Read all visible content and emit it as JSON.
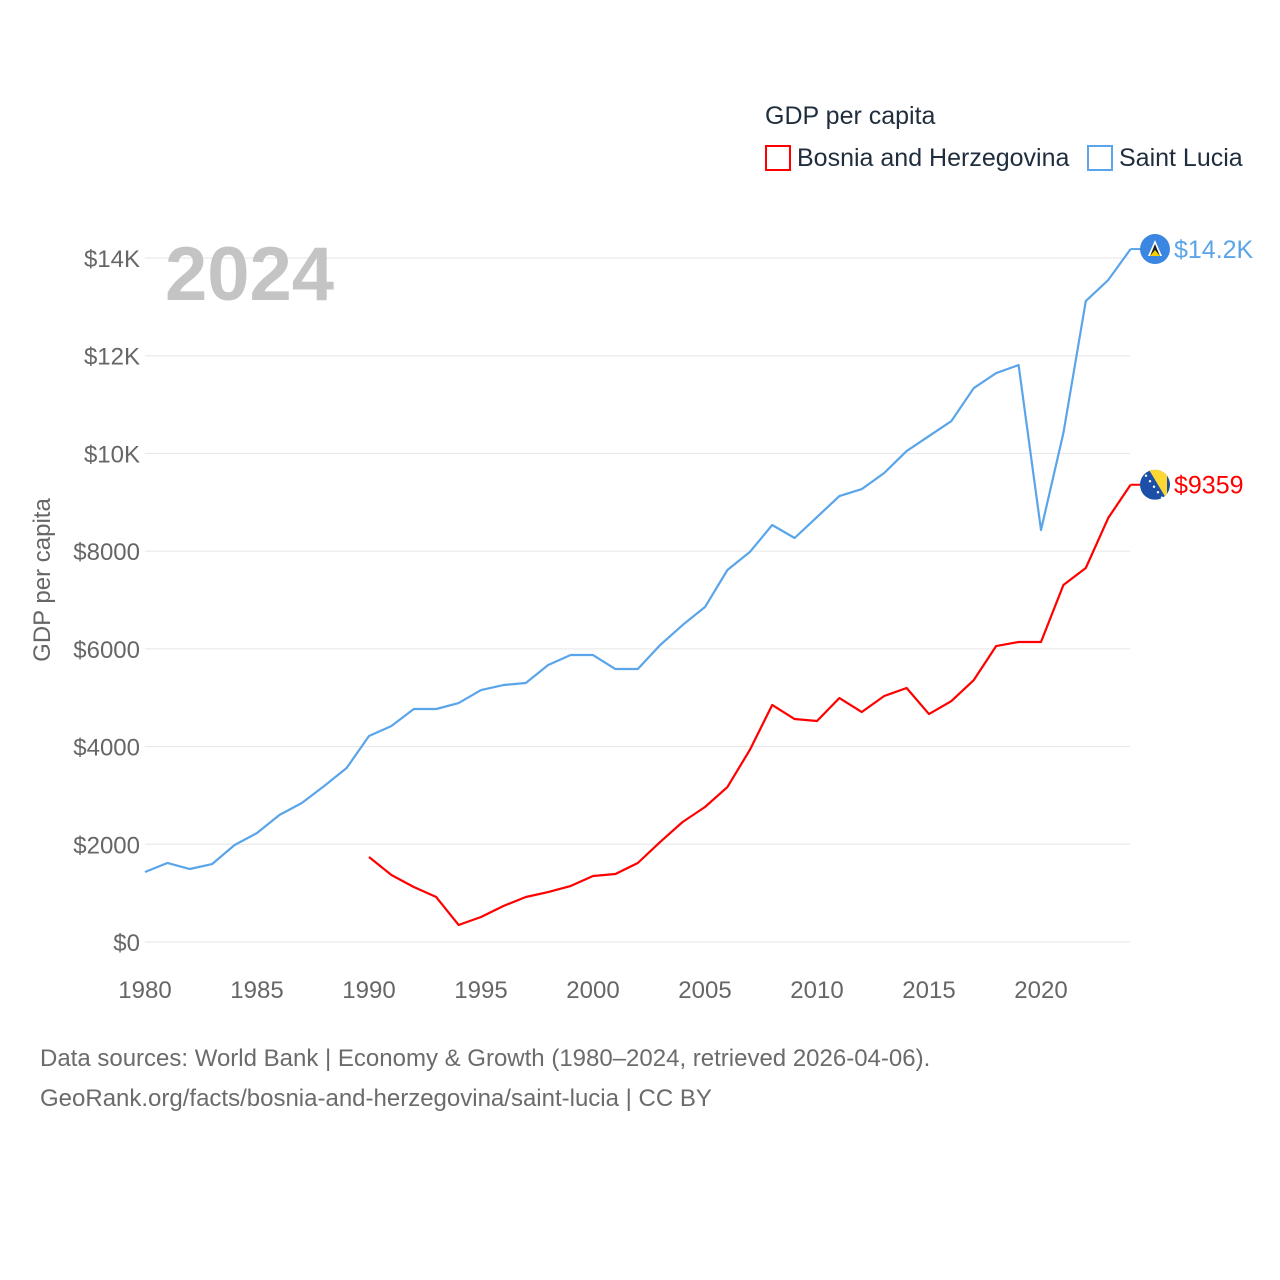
{
  "chart_data": {
    "type": "line",
    "title": "GDP per capita",
    "ylabel": "GDP per capita",
    "xlabel": "",
    "year_label": "2024",
    "xlim": [
      1980,
      2024
    ],
    "ylim": [
      0,
      14000
    ],
    "x_ticks": [
      1980,
      1985,
      1990,
      1995,
      2000,
      2005,
      2010,
      2015,
      2020
    ],
    "y_ticks": [
      0,
      2000,
      4000,
      6000,
      8000,
      10000,
      12000,
      14000
    ],
    "y_tick_labels": [
      "$0",
      "$2000",
      "$4000",
      "$6000",
      "$8000",
      "$10K",
      "$12K",
      "$14K"
    ],
    "grid": true,
    "legend_position": "top-right",
    "series": [
      {
        "name": "Bosnia and Herzegovina",
        "color": "#ff0000",
        "end_label": "$9359",
        "flag": "bosnia-flag",
        "start_year": 1990,
        "values": [
          1740,
          1371,
          1126,
          921,
          348,
          512,
          737,
          921,
          1023,
          1146,
          1351,
          1392,
          1617,
          2047,
          2456,
          2763,
          3172,
          3930,
          4851,
          4564,
          4523,
          4994,
          4707,
          5035,
          5199,
          4666,
          4932,
          5362,
          6058,
          6140,
          6140,
          7307,
          7655,
          8678,
          9359
        ]
      },
      {
        "name": "Saint Lucia",
        "color": "#5aa5ea",
        "end_label": "$14.2K",
        "flag": "saint-lucia-flag",
        "start_year": 1980,
        "values": [
          1433,
          1617,
          1494,
          1596,
          1985,
          2231,
          2599,
          2845,
          3193,
          3561,
          4216,
          4421,
          4769,
          4769,
          4891,
          5157,
          5260,
          5301,
          5669,
          5874,
          5874,
          5587,
          5587,
          6079,
          6488,
          6856,
          7614,
          7982,
          8535,
          8269,
          8698,
          9128,
          9271,
          9599,
          10049,
          10356,
          10663,
          11338,
          11645,
          11809,
          8432,
          10417,
          13119,
          13549,
          14183
        ]
      }
    ]
  },
  "sources": {
    "line1": "Data sources: World Bank | Economy & Growth (1980–2024, retrieved 2026-04-06).",
    "line2": "GeoRank.org/facts/bosnia-and-herzegovina/saint-lucia | CC BY"
  }
}
